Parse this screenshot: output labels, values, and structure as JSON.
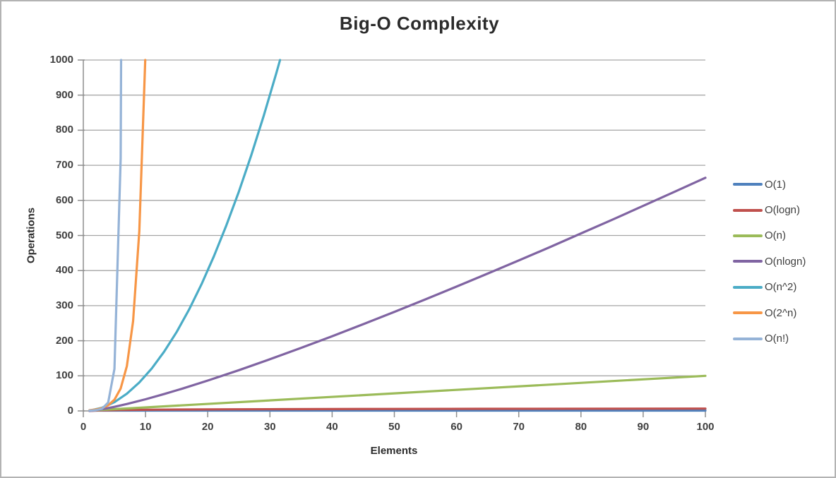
{
  "chart_data": {
    "type": "line",
    "title": "Big-O Complexity",
    "xlabel": "Elements",
    "ylabel": "Operations",
    "xlim": [
      0,
      100
    ],
    "ylim": [
      0,
      1000
    ],
    "x_ticks": [
      0,
      10,
      20,
      30,
      40,
      50,
      60,
      70,
      80,
      90,
      100
    ],
    "y_ticks": [
      0,
      100,
      200,
      300,
      400,
      500,
      600,
      700,
      800,
      900,
      1000
    ],
    "grid": "horizontal",
    "grid_color": "#A6A6A6",
    "axis_color": "#8E8E8E",
    "legend_position": "right",
    "series": [
      {
        "name": "O(1)",
        "color": "#4F81BD",
        "points": [
          [
            1,
            1
          ],
          [
            100,
            1
          ]
        ]
      },
      {
        "name": "O(logn)",
        "color": "#C0504D",
        "points": [
          [
            1,
            0
          ],
          [
            2,
            1
          ],
          [
            3,
            1.58
          ],
          [
            4,
            2
          ],
          [
            6,
            2.58
          ],
          [
            8,
            3
          ],
          [
            12,
            3.58
          ],
          [
            16,
            4
          ],
          [
            24,
            4.58
          ],
          [
            32,
            5
          ],
          [
            48,
            5.58
          ],
          [
            64,
            6
          ],
          [
            100,
            6.64
          ]
        ]
      },
      {
        "name": "O(n)",
        "color": "#9BBB59",
        "points": [
          [
            1,
            1
          ],
          [
            100,
            100
          ]
        ]
      },
      {
        "name": "O(nlogn)",
        "color": "#8064A2",
        "points": [
          [
            1,
            0
          ],
          [
            2,
            2
          ],
          [
            3,
            4.75
          ],
          [
            4,
            8
          ],
          [
            5,
            11.61
          ],
          [
            7,
            19.65
          ],
          [
            10,
            33.22
          ],
          [
            13,
            48.11
          ],
          [
            16,
            64
          ],
          [
            20,
            86.44
          ],
          [
            25,
            116.1
          ],
          [
            30,
            147.21
          ],
          [
            35,
            179.46
          ],
          [
            40,
            212.88
          ],
          [
            45,
            247.2
          ],
          [
            50,
            282.19
          ],
          [
            55,
            317.97
          ],
          [
            60,
            354.41
          ],
          [
            65,
            391.35
          ],
          [
            70,
            428.83
          ],
          [
            75,
            466.87
          ],
          [
            80,
            505.75
          ],
          [
            85,
            544.75
          ],
          [
            90,
            584.26
          ],
          [
            95,
            624.17
          ],
          [
            100,
            664.39
          ]
        ]
      },
      {
        "name": "O(n^2)",
        "color": "#4BACC6",
        "points": [
          [
            1,
            1
          ],
          [
            3,
            9
          ],
          [
            5,
            25
          ],
          [
            7,
            49
          ],
          [
            9,
            81
          ],
          [
            11,
            121
          ],
          [
            13,
            169
          ],
          [
            15,
            225
          ],
          [
            17,
            289
          ],
          [
            19,
            361
          ],
          [
            21,
            441
          ],
          [
            23,
            529
          ],
          [
            25,
            625
          ],
          [
            27,
            729
          ],
          [
            29,
            841
          ],
          [
            31,
            961
          ],
          [
            31.62,
            1000
          ]
        ]
      },
      {
        "name": "O(2^n)",
        "color": "#F79646",
        "points": [
          [
            1,
            2
          ],
          [
            2,
            4
          ],
          [
            3,
            8
          ],
          [
            4,
            16
          ],
          [
            5,
            32
          ],
          [
            6,
            64
          ],
          [
            7,
            128
          ],
          [
            8,
            256
          ],
          [
            9,
            512
          ],
          [
            9.95,
            1000
          ]
        ]
      },
      {
        "name": "O(n!)",
        "color": "#95B3D7",
        "points": [
          [
            1,
            1
          ],
          [
            2,
            2
          ],
          [
            3,
            6
          ],
          [
            4,
            24
          ],
          [
            5,
            120
          ],
          [
            6,
            720
          ],
          [
            6.07,
            1000
          ]
        ]
      }
    ]
  }
}
